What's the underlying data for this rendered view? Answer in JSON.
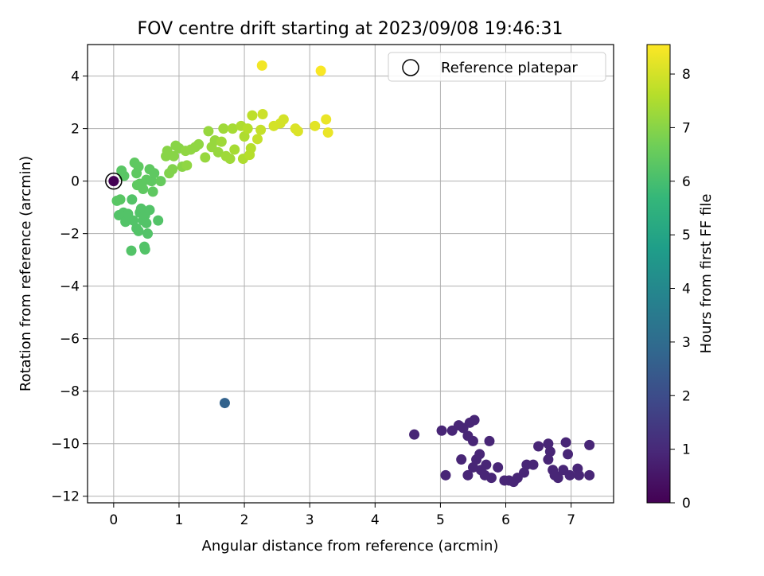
{
  "chart_data": {
    "type": "scatter",
    "title": "FOV centre drift starting at 2023/09/08 19:46:31",
    "xlabel": "Angular distance from reference (arcmin)",
    "ylabel": "Rotation from reference (arcmin)",
    "xlim": [
      -0.4,
      7.65
    ],
    "ylim": [
      -12.25,
      5.2
    ],
    "x_ticks": [
      0,
      1,
      2,
      3,
      4,
      5,
      6,
      7
    ],
    "y_ticks": [
      -12,
      -10,
      -8,
      -6,
      -4,
      -2,
      0,
      2,
      4
    ],
    "grid": true,
    "legend": {
      "placement": "top-right",
      "entries": [
        {
          "label": "Reference platepar",
          "marker": "open-circle"
        }
      ]
    },
    "reference_point": {
      "x": 0,
      "y": 0
    },
    "colorbar": {
      "label": "Hours from first FF file",
      "min": 0,
      "max": 8.55,
      "ticks": [
        0,
        1,
        2,
        3,
        4,
        5,
        6,
        7,
        8
      ],
      "colormap": "viridis",
      "colors": [
        "#440154",
        "#482878",
        "#3e4989",
        "#31688e",
        "#26828e",
        "#1f9e89",
        "#35b779",
        "#6ece58",
        "#b5de2b",
        "#fde725"
      ]
    },
    "series": [
      {
        "points": [
          {
            "x": 0.0,
            "y": 0.0,
            "t": 0.0
          },
          {
            "x": 1.7,
            "y": -8.45,
            "t": 2.7
          },
          {
            "x": 4.6,
            "y": -9.65,
            "t": 0.9
          },
          {
            "x": 5.02,
            "y": -9.5,
            "t": 0.9
          },
          {
            "x": 5.18,
            "y": -9.5,
            "t": 0.9
          },
          {
            "x": 5.28,
            "y": -9.3,
            "t": 0.9
          },
          {
            "x": 5.35,
            "y": -9.4,
            "t": 0.9
          },
          {
            "x": 5.45,
            "y": -9.2,
            "t": 0.9
          },
          {
            "x": 5.52,
            "y": -9.1,
            "t": 0.9
          },
          {
            "x": 5.42,
            "y": -9.7,
            "t": 0.9
          },
          {
            "x": 5.5,
            "y": -9.9,
            "t": 0.9
          },
          {
            "x": 5.75,
            "y": -9.9,
            "t": 0.9
          },
          {
            "x": 5.6,
            "y": -10.4,
            "t": 0.9
          },
          {
            "x": 5.32,
            "y": -10.6,
            "t": 0.9
          },
          {
            "x": 5.08,
            "y": -11.2,
            "t": 0.9
          },
          {
            "x": 5.42,
            "y": -11.2,
            "t": 0.9
          },
          {
            "x": 5.5,
            "y": -10.9,
            "t": 0.9
          },
          {
            "x": 5.55,
            "y": -10.6,
            "t": 0.9
          },
          {
            "x": 5.62,
            "y": -11.0,
            "t": 0.9
          },
          {
            "x": 5.7,
            "y": -10.8,
            "t": 0.9
          },
          {
            "x": 5.68,
            "y": -11.2,
            "t": 0.9
          },
          {
            "x": 5.78,
            "y": -11.3,
            "t": 0.9
          },
          {
            "x": 5.88,
            "y": -10.9,
            "t": 0.9
          },
          {
            "x": 5.98,
            "y": -11.4,
            "t": 0.9
          },
          {
            "x": 6.05,
            "y": -11.4,
            "t": 0.9
          },
          {
            "x": 6.12,
            "y": -11.45,
            "t": 0.9
          },
          {
            "x": 6.18,
            "y": -11.3,
            "t": 0.9
          },
          {
            "x": 6.28,
            "y": -11.1,
            "t": 0.9
          },
          {
            "x": 6.32,
            "y": -10.8,
            "t": 0.9
          },
          {
            "x": 6.42,
            "y": -10.8,
            "t": 0.9
          },
          {
            "x": 6.5,
            "y": -10.1,
            "t": 0.9
          },
          {
            "x": 6.65,
            "y": -10.0,
            "t": 0.9
          },
          {
            "x": 6.68,
            "y": -10.3,
            "t": 0.9
          },
          {
            "x": 6.65,
            "y": -10.6,
            "t": 0.9
          },
          {
            "x": 6.72,
            "y": -11.0,
            "t": 0.9
          },
          {
            "x": 6.8,
            "y": -11.3,
            "t": 0.9
          },
          {
            "x": 6.75,
            "y": -11.2,
            "t": 0.9
          },
          {
            "x": 6.88,
            "y": -11.0,
            "t": 0.9
          },
          {
            "x": 6.92,
            "y": -9.95,
            "t": 0.9
          },
          {
            "x": 6.95,
            "y": -10.4,
            "t": 0.9
          },
          {
            "x": 6.98,
            "y": -11.2,
            "t": 0.9
          },
          {
            "x": 7.1,
            "y": -10.95,
            "t": 0.9
          },
          {
            "x": 7.12,
            "y": -11.2,
            "t": 0.9
          },
          {
            "x": 7.28,
            "y": -10.05,
            "t": 0.9
          },
          {
            "x": 7.28,
            "y": -11.2,
            "t": 0.9
          },
          {
            "x": 0.1,
            "y": -0.7,
            "t": 6.3
          },
          {
            "x": 0.16,
            "y": 0.2,
            "t": 6.3
          },
          {
            "x": 0.12,
            "y": 0.4,
            "t": 6.3
          },
          {
            "x": 0.08,
            "y": -1.3,
            "t": 6.2
          },
          {
            "x": 0.15,
            "y": -1.2,
            "t": 6.2
          },
          {
            "x": 0.18,
            "y": -1.55,
            "t": 6.2
          },
          {
            "x": 0.22,
            "y": -1.25,
            "t": 6.2
          },
          {
            "x": 0.28,
            "y": -0.7,
            "t": 6.2
          },
          {
            "x": 0.3,
            "y": -1.5,
            "t": 6.2
          },
          {
            "x": 0.35,
            "y": -1.8,
            "t": 6.2
          },
          {
            "x": 0.38,
            "y": -1.9,
            "t": 6.2
          },
          {
            "x": 0.4,
            "y": -1.2,
            "t": 6.2
          },
          {
            "x": 0.42,
            "y": -1.05,
            "t": 6.2
          },
          {
            "x": 0.45,
            "y": -1.5,
            "t": 6.2
          },
          {
            "x": 0.48,
            "y": -1.3,
            "t": 6.2
          },
          {
            "x": 0.5,
            "y": -1.6,
            "t": 6.2
          },
          {
            "x": 0.52,
            "y": -2.0,
            "t": 6.2
          },
          {
            "x": 0.55,
            "y": -1.1,
            "t": 6.2
          },
          {
            "x": 0.68,
            "y": -1.5,
            "t": 6.2
          },
          {
            "x": 0.27,
            "y": -2.65,
            "t": 6.2
          },
          {
            "x": 0.47,
            "y": -2.5,
            "t": 6.2
          },
          {
            "x": 0.48,
            "y": -2.6,
            "t": 6.2
          },
          {
            "x": 0.05,
            "y": -0.75,
            "t": 6.3
          },
          {
            "x": 0.32,
            "y": 0.7,
            "t": 6.4
          },
          {
            "x": 0.38,
            "y": 0.55,
            "t": 6.4
          },
          {
            "x": 0.35,
            "y": 0.3,
            "t": 6.4
          },
          {
            "x": 0.4,
            "y": -0.1,
            "t": 6.4
          },
          {
            "x": 0.45,
            "y": -0.3,
            "t": 6.4
          },
          {
            "x": 0.5,
            "y": 0.05,
            "t": 6.4
          },
          {
            "x": 0.55,
            "y": 0.45,
            "t": 6.4
          },
          {
            "x": 0.58,
            "y": 0.0,
            "t": 6.4
          },
          {
            "x": 0.6,
            "y": -0.4,
            "t": 6.4
          },
          {
            "x": 0.62,
            "y": 0.3,
            "t": 6.4
          },
          {
            "x": 0.72,
            "y": 0.0,
            "t": 6.5
          },
          {
            "x": 0.36,
            "y": -0.15,
            "t": 6.4
          },
          {
            "x": 0.8,
            "y": 0.95,
            "t": 7.0
          },
          {
            "x": 0.82,
            "y": 1.15,
            "t": 7.0
          },
          {
            "x": 0.85,
            "y": 0.3,
            "t": 6.9
          },
          {
            "x": 0.9,
            "y": 0.45,
            "t": 6.9
          },
          {
            "x": 0.92,
            "y": 0.95,
            "t": 7.0
          },
          {
            "x": 0.95,
            "y": 1.35,
            "t": 7.0
          },
          {
            "x": 1.0,
            "y": 1.25,
            "t": 7.0
          },
          {
            "x": 1.05,
            "y": 0.55,
            "t": 7.0
          },
          {
            "x": 1.1,
            "y": 1.15,
            "t": 7.1
          },
          {
            "x": 1.12,
            "y": 0.6,
            "t": 7.1
          },
          {
            "x": 1.18,
            "y": 1.2,
            "t": 7.1
          },
          {
            "x": 1.25,
            "y": 1.3,
            "t": 7.1
          },
          {
            "x": 1.3,
            "y": 1.4,
            "t": 7.1
          },
          {
            "x": 1.4,
            "y": 0.9,
            "t": 7.2
          },
          {
            "x": 1.45,
            "y": 1.9,
            "t": 7.2
          },
          {
            "x": 1.5,
            "y": 1.3,
            "t": 7.2
          },
          {
            "x": 1.55,
            "y": 1.55,
            "t": 7.2
          },
          {
            "x": 1.6,
            "y": 1.1,
            "t": 7.2
          },
          {
            "x": 1.65,
            "y": 1.5,
            "t": 7.3
          },
          {
            "x": 1.68,
            "y": 2.0,
            "t": 7.3
          },
          {
            "x": 1.72,
            "y": 0.95,
            "t": 7.3
          },
          {
            "x": 1.78,
            "y": 0.85,
            "t": 7.3
          },
          {
            "x": 1.82,
            "y": 2.0,
            "t": 7.4
          },
          {
            "x": 1.85,
            "y": 1.2,
            "t": 7.4
          },
          {
            "x": 1.95,
            "y": 2.1,
            "t": 7.5
          },
          {
            "x": 1.98,
            "y": 0.85,
            "t": 7.5
          },
          {
            "x": 2.0,
            "y": 1.7,
            "t": 7.5
          },
          {
            "x": 2.05,
            "y": 2.0,
            "t": 7.6
          },
          {
            "x": 2.08,
            "y": 1.0,
            "t": 7.6
          },
          {
            "x": 2.1,
            "y": 1.25,
            "t": 7.6
          },
          {
            "x": 2.12,
            "y": 2.5,
            "t": 7.7
          },
          {
            "x": 2.2,
            "y": 1.6,
            "t": 7.8
          },
          {
            "x": 2.25,
            "y": 1.95,
            "t": 7.8
          },
          {
            "x": 2.28,
            "y": 2.55,
            "t": 7.9
          },
          {
            "x": 2.45,
            "y": 2.1,
            "t": 8.0
          },
          {
            "x": 2.55,
            "y": 2.2,
            "t": 8.0
          },
          {
            "x": 2.6,
            "y": 2.35,
            "t": 8.0
          },
          {
            "x": 2.78,
            "y": 2.0,
            "t": 8.1
          },
          {
            "x": 2.82,
            "y": 1.9,
            "t": 8.1
          },
          {
            "x": 3.08,
            "y": 2.1,
            "t": 8.2
          },
          {
            "x": 3.25,
            "y": 2.35,
            "t": 8.3
          },
          {
            "x": 3.28,
            "y": 1.85,
            "t": 8.3
          },
          {
            "x": 2.27,
            "y": 4.4,
            "t": 8.4
          },
          {
            "x": 3.17,
            "y": 4.2,
            "t": 8.5
          }
        ]
      }
    ]
  }
}
